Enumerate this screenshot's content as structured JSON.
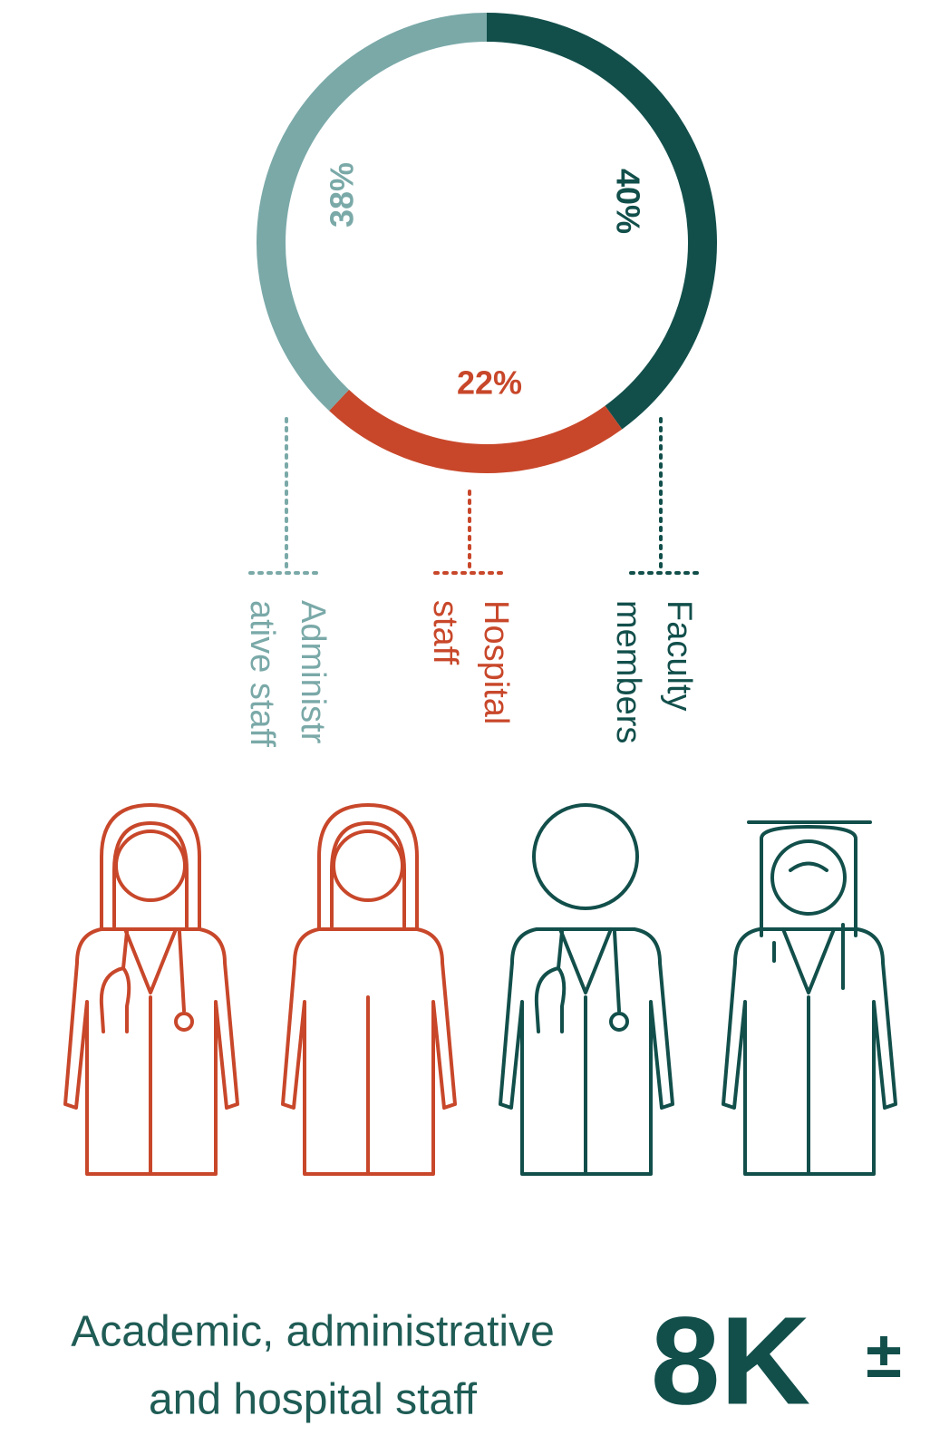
{
  "chart_data": {
    "type": "donut",
    "categories": [
      [
        "Faculty",
        "members"
      ],
      [
        "Hospital",
        "staff"
      ],
      [
        "Administr",
        "ative staff"
      ]
    ],
    "values": [
      40,
      22,
      38
    ],
    "value_labels": [
      "40%",
      "22%",
      "38%"
    ],
    "colors": [
      "#124f4b",
      "#c8472a",
      "#7aa9a8"
    ],
    "caption": [
      "Academic, administrative",
      "and hospital staff"
    ],
    "headline": "8K",
    "headline_mark": "±"
  }
}
